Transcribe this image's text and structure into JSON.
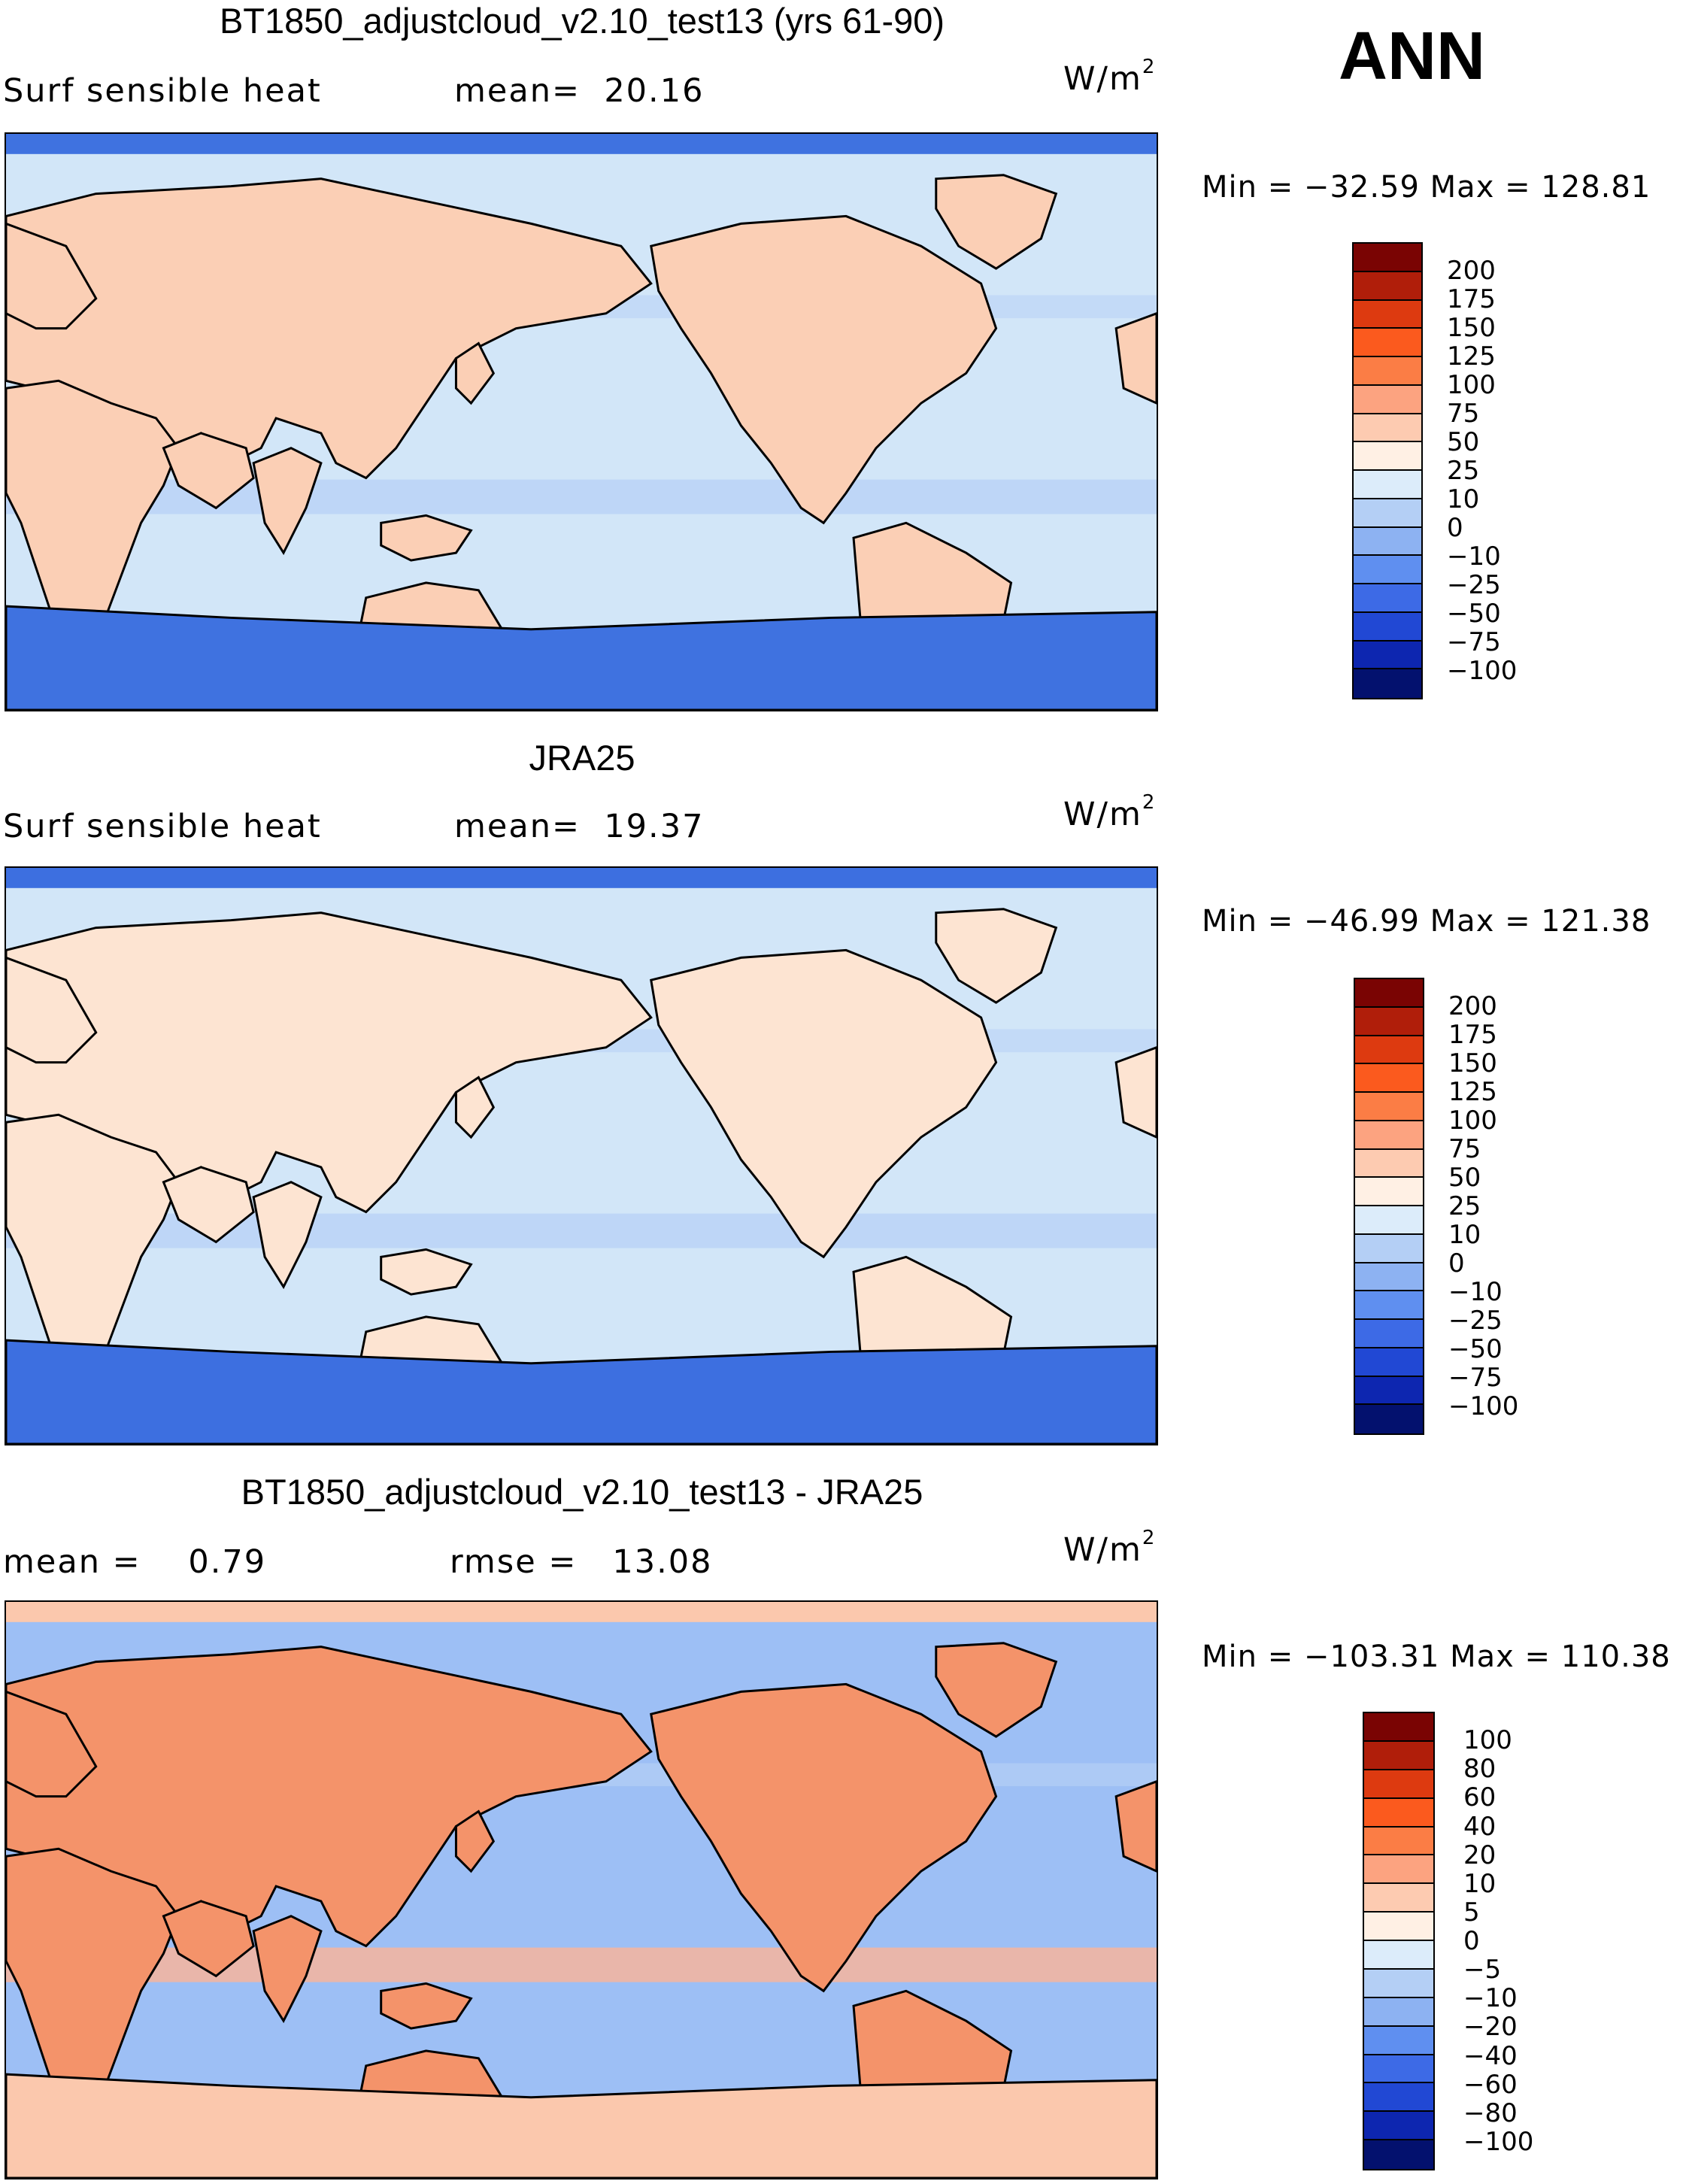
{
  "season": "ANN",
  "panels": [
    {
      "id": "model",
      "title": "BT1850_adjustcloud_v2.10_test13 (yrs 61-90)",
      "left_label": "Surf sensible heat",
      "right_label_name": "mean=",
      "right_label_value": "20.16",
      "units_base": "W/m",
      "units_exp": "2",
      "minmax": "Min = −32.59 Max = 128.81",
      "ocean": "#d2e6f8",
      "land": "#fbcfb5",
      "ice": "#3f72e0"
    },
    {
      "id": "obs",
      "title": "JRA25",
      "left_label": "Surf sensible heat",
      "right_label_name": "mean=",
      "right_label_value": "19.37",
      "units_base": "W/m",
      "units_exp": "2",
      "minmax": "Min = −46.99 Max = 121.38",
      "ocean": "#d2e6f8",
      "land": "#fde4d2",
      "ice": "#3d6fe0"
    },
    {
      "id": "diff",
      "title": "BT1850_adjustcloud_v2.10_test13 - JRA25",
      "left_label": "mean =",
      "left_value": "0.79",
      "right_label_name": "rmse =",
      "right_label_value": "13.08",
      "units_base": "W/m",
      "units_exp": "2",
      "minmax": "Min = −103.31 Max = 110.38",
      "ocean": "#9dbff5",
      "land": "#f4936a",
      "ice": "#fbc8ad"
    }
  ],
  "colorbar_abs": {
    "labels": [
      "200",
      "175",
      "150",
      "125",
      "100",
      "75",
      "50",
      "25",
      "10",
      "0",
      "−10",
      "−25",
      "−50",
      "−75",
      "−100"
    ],
    "colors": [
      "#7a0403",
      "#b01e0a",
      "#dd3a10",
      "#fb5a1e",
      "#fb7d45",
      "#fca380",
      "#fdcbb1",
      "#fff0e4",
      "#dcecfa",
      "#b4cff5",
      "#8db2f2",
      "#5f8ff0",
      "#3d6ae6",
      "#2148d4",
      "#0d26b0",
      "#03116e"
    ]
  },
  "colorbar_diff": {
    "labels": [
      "100",
      "80",
      "60",
      "40",
      "20",
      "10",
      "5",
      "0",
      "−5",
      "−10",
      "−20",
      "−40",
      "−60",
      "−80",
      "−100"
    ],
    "colors": [
      "#7a0403",
      "#b01e0a",
      "#dd3a10",
      "#fb5a1e",
      "#fb7d45",
      "#fca380",
      "#fdcbb1",
      "#fff0e4",
      "#dcecfa",
      "#b4cff5",
      "#8db2f2",
      "#5f8ff0",
      "#3d6ae6",
      "#2148d4",
      "#0d26b0",
      "#03116e"
    ]
  }
}
